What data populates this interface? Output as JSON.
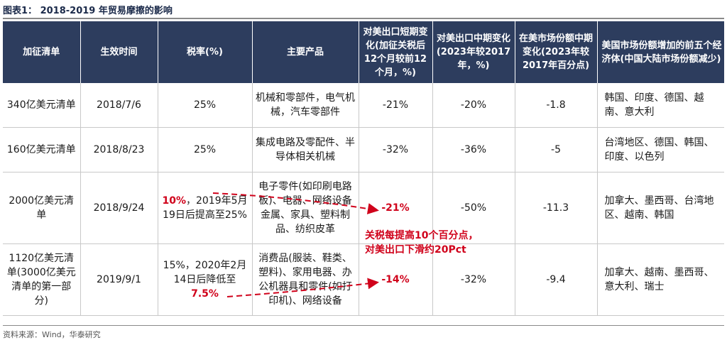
{
  "title": "图表1： 2018-2019 年贸易摩擦的影响",
  "headers": [
    "加征清单",
    "生效时间",
    "税率(%)",
    "主要产品",
    "对美出口短期变化(加征关税后12个月较前12个月，%)",
    "对美出口中期变化(2023年较2017年，%)",
    "在美市场份额中期变化(2023年较2017年百分点)",
    "美国市场份额增加的前五个经济体(中国大陆市场份额减少)"
  ],
  "rows": [
    {
      "list": "340亿美元清单",
      "date": "2018/7/6",
      "rate": "25%",
      "products": "机械和零部件，电气机械，汽车零部件",
      "short": "-21%",
      "mid": "-20%",
      "share": "-1.8",
      "top5": "韩国、印度、德国、越南、意大利"
    },
    {
      "list": "160亿美元清单",
      "date": "2018/8/23",
      "rate": "25%",
      "products": "集成电路及零配件、半导体相关机械",
      "short": "-32%",
      "mid": "-36%",
      "share": "-5",
      "top5": "台湾地区、德国、韩国、印度、以色列"
    },
    {
      "list": "2000亿美元清单",
      "date": "2018/9/24",
      "rate_highlight": "10%",
      "rate_rest": "，2019年5月19日后提高至25%",
      "products": "电子零件(如印刷电路板)、电器、网络设备金属、家具、塑料制品、纺织皮革",
      "short": "-21%",
      "mid": "-50%",
      "share": "-11.3",
      "top5": "加拿大、墨西哥、台湾地区、越南、韩国"
    },
    {
      "list": "1120亿美元清单(3000亿美元清单的第一部分)",
      "date": "2019/9/1",
      "rate_rest": "15%，2020年2月14日后降低至",
      "rate_highlight": "7.5%",
      "products": "消费品(服装、鞋类、塑料)、家用电器、办公机器具和零件(如打印机)、网络设备",
      "short": "-14%",
      "mid": "-32%",
      "share": "-9.4",
      "top5": "加拿大、越南、墨西哥、意大利、瑞士"
    }
  ],
  "annotation": {
    "line1": "关税每提高10个百分点，",
    "line2": "对美出口下滑约20Pct"
  },
  "source": "资料来源：Wind，华泰研究",
  "colors": {
    "header_bg": "#2d3d5e",
    "highlight": "#d0021b"
  }
}
